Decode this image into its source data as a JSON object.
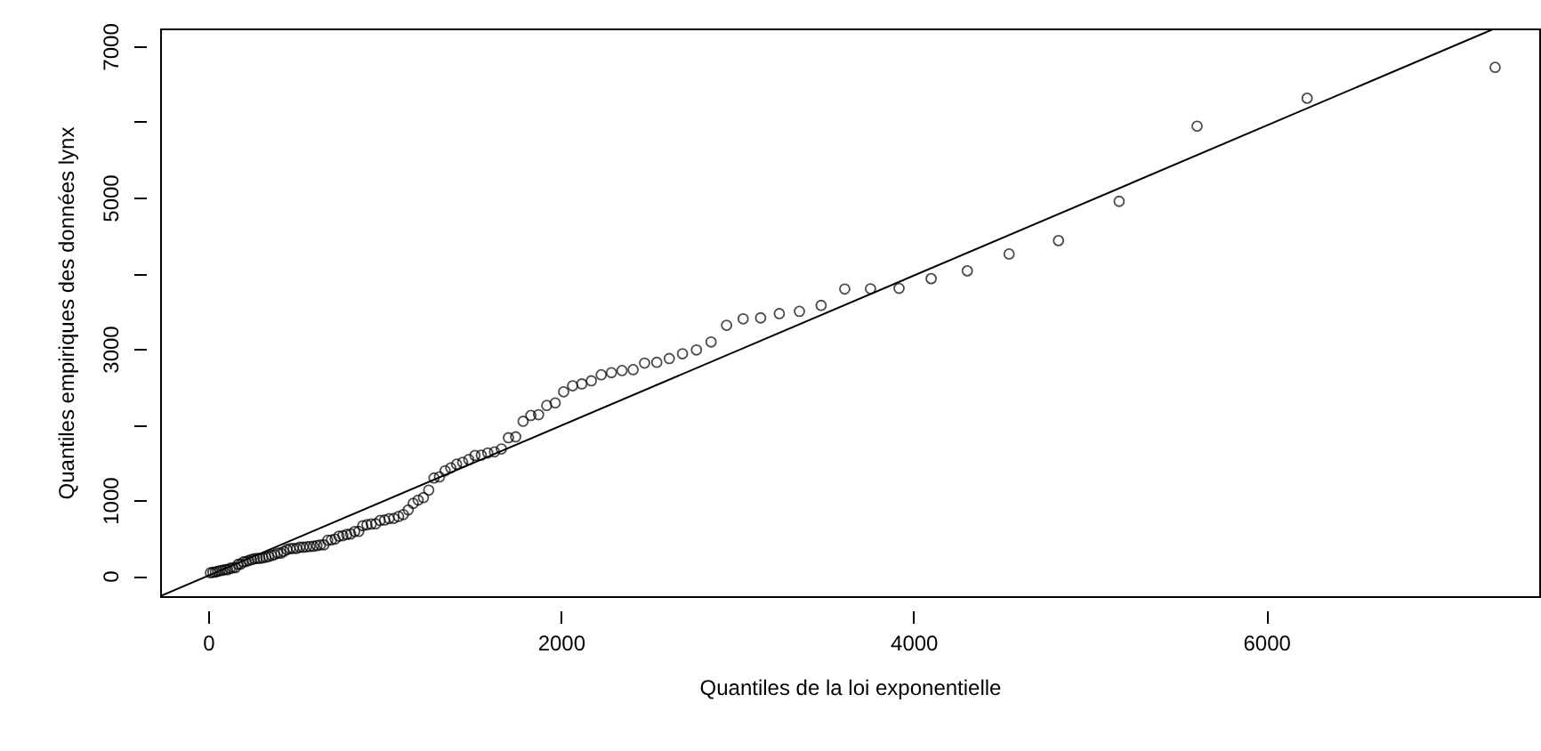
{
  "chart_data": {
    "type": "scatter",
    "xlabel": "Quantiles de la loi exponentielle",
    "ylabel": "Quantiles empiriques des données lynx",
    "xlim": [
      -272,
      7548
    ],
    "ylim": [
      -270,
      7235
    ],
    "xticks": [
      0,
      2000,
      4000,
      6000
    ],
    "yticks": [
      0,
      1000,
      {
        "value": 2000,
        "label": null
      },
      3000,
      {
        "value": 4000,
        "label": null
      },
      5000,
      {
        "value": 6000,
        "label": null
      },
      7000
    ],
    "grid": false,
    "series": [
      {
        "marker": "circle",
        "color": "#000000",
        "x": [
          13,
          27,
          41,
          54,
          68,
          82,
          97,
          111,
          125,
          140,
          155,
          170,
          185,
          200,
          215,
          230,
          246,
          262,
          278,
          294,
          310,
          327,
          343,
          360,
          377,
          394,
          412,
          429,
          447,
          465,
          483,
          502,
          520,
          539,
          558,
          577,
          597,
          617,
          637,
          657,
          678,
          699,
          720,
          742,
          764,
          786,
          808,
          831,
          854,
          877,
          901,
          925,
          950,
          975,
          1001,
          1026,
          1053,
          1080,
          1107,
          1135,
          1163,
          1191,
          1221,
          1251,
          1281,
          1312,
          1344,
          1376,
          1409,
          1443,
          1478,
          1513,
          1549,
          1586,
          1624,
          1663,
          1703,
          1744,
          1786,
          1830,
          1874,
          1920,
          1968,
          2016,
          2067,
          2119,
          2173,
          2229,
          2287,
          2347,
          2410,
          2475,
          2544,
          2615,
          2690,
          2769,
          2852,
          2940,
          3034,
          3133,
          3239,
          3353,
          3476,
          3610,
          3756,
          3918,
          4100,
          4305,
          4542,
          4822,
          5166,
          5608,
          6232,
          7298
        ],
        "values": [
          39,
          45,
          49,
          59,
          68,
          73,
          80,
          81,
          98,
          105,
          108,
          151,
          153,
          184,
          188,
          201,
          213,
          225,
          229,
          229,
          236,
          245,
          255,
          269,
          279,
          299,
          299,
          321,
          345,
          358,
          360,
          361,
          377,
          377,
          382,
          387,
          389,
          399,
          409,
          409,
          469,
          473,
          485,
          523,
          529,
          546,
          552,
          585,
          587,
          662,
          674,
          684,
          687,
          731,
          736,
          756,
          758,
          784,
          808,
          871,
          957,
          1000,
          1033,
          1132,
          1292,
          1307,
          1388,
          1426,
          1475,
          1500,
          1537,
          1590,
          1594,
          1623,
          1638,
          1676,
          1824,
          1836,
          2042,
          2119,
          2129,
          2251,
          2285,
          2432,
          2511,
          2536,
          2577,
          2657,
          2685,
          2713,
          2725,
          2811,
          2821,
          2871,
          2935,
          2985,
          3091,
          3311,
          3396,
          3409,
          3465,
          3495,
          3574,
          3790,
          3794,
          3800,
          3928,
          4031,
          4254,
          4431,
          4950,
          5943,
          6313,
          6721
        ]
      },
      {
        "type": "line",
        "line_style": "solid",
        "color": "#000000",
        "x": [
          -272,
          7296
        ],
        "values": [
          -270,
          7235
        ]
      }
    ]
  }
}
